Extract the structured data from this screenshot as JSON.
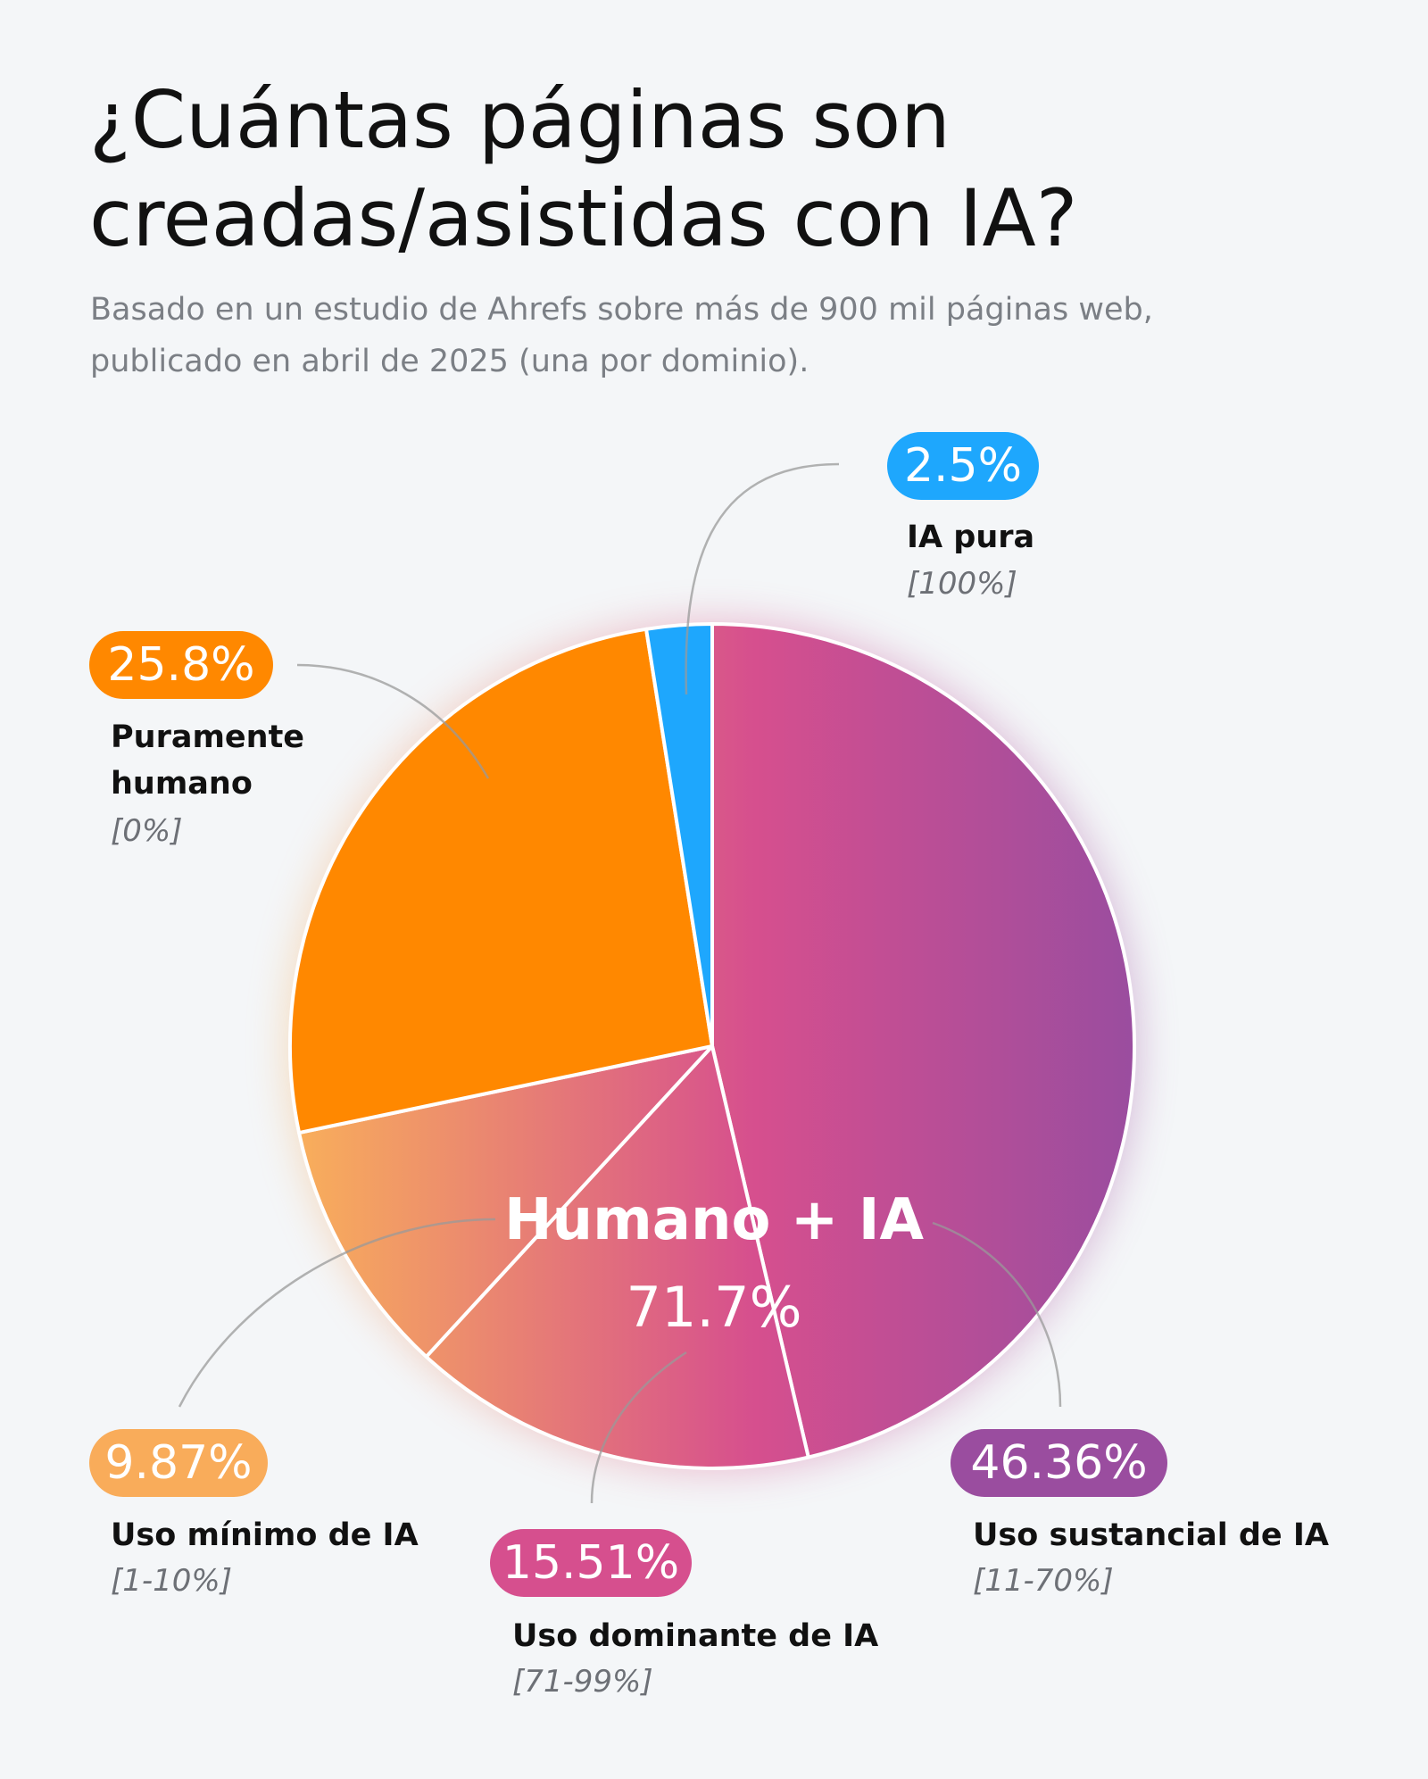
{
  "header": {
    "title_line1": "¿Cuántas páginas son",
    "title_line2": "creadas/asistidas con IA?",
    "subtitle_line1": "Basado en un estudio de Ahrefs sobre más de 900 mil páginas web,",
    "subtitle_line2": "publicado en abril de 2025 (una por dominio)."
  },
  "chart_data": {
    "type": "pie",
    "start": "top, clockwise",
    "slices": [
      {
        "value": 46.36,
        "value_label": "46.36%",
        "name": "Uso sustancial de IA",
        "range": "[11-70%]",
        "color": "#9a4d9f"
      },
      {
        "value": 15.51,
        "value_label": "15.51%",
        "name": "Uso dominante de IA",
        "range": "[71-99%]",
        "color": "#d64f8e"
      },
      {
        "value": 9.87,
        "value_label": "9.87%",
        "name": "Uso mínimo de IA",
        "range": "[1-10%]",
        "color": "#f9ac5a"
      },
      {
        "value": 25.8,
        "value_label": "25.8%",
        "name_line1": "Puramente",
        "name_line2": "humano",
        "range": "[0%]",
        "color": "#ff8800"
      },
      {
        "value": 2.5,
        "value_label": "2.5%",
        "name": "IA pura",
        "range": "[100%]",
        "color": "#1ea7fd"
      }
    ],
    "group_annotation": {
      "label": "Humano + IA",
      "value": "71.7%",
      "gradient": [
        "#f9b05a",
        "#d64f8e",
        "#9a4d9f"
      ]
    }
  }
}
